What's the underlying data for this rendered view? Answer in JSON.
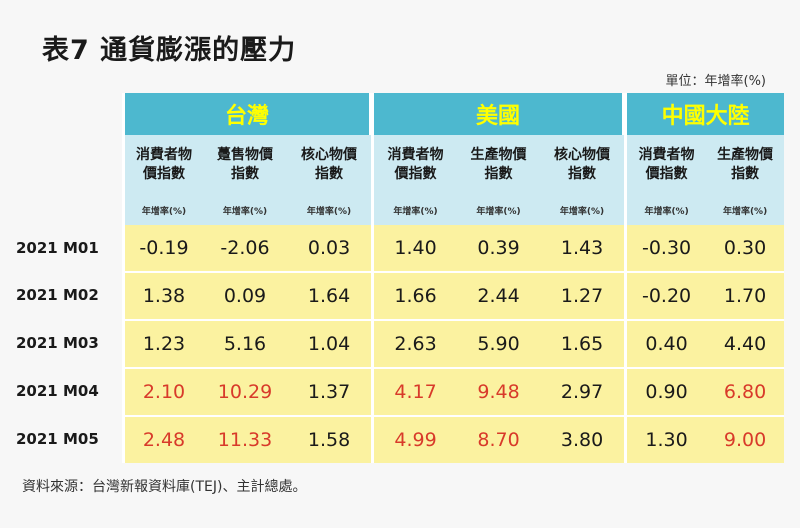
{
  "title": "表7  通貨膨漲的壓力",
  "unit_note": "單位：年增率(%)",
  "source": "資料來源：台灣新報資料庫(TEJ)、主計總處。",
  "groups": [
    {
      "name": "台灣",
      "columns": [
        {
          "label_line1": "消費者物",
          "label_line2": "價指數",
          "unit": "年增率(%)"
        },
        {
          "label_line1": "躉售物價",
          "label_line2": "指數",
          "unit": "年增率(%)"
        },
        {
          "label_line1": "核心物價",
          "label_line2": "指數",
          "unit": "年增率(%)"
        }
      ]
    },
    {
      "name": "美國",
      "columns": [
        {
          "label_line1": "消費者物",
          "label_line2": "價指數",
          "unit": "年增率(%)"
        },
        {
          "label_line1": "生產物價",
          "label_line2": "指數",
          "unit": "年增率(%)"
        },
        {
          "label_line1": "核心物價",
          "label_line2": "指數",
          "unit": "年增率(%)"
        }
      ]
    },
    {
      "name": "中國大陸",
      "columns": [
        {
          "label_line1": "消費者物",
          "label_line2": "價指數",
          "unit": "年增率(%)"
        },
        {
          "label_line1": "生產物價",
          "label_line2": "指數",
          "unit": "年增率(%)"
        }
      ]
    }
  ],
  "rows": [
    {
      "label": "2021 M01",
      "values": [
        "-0.19",
        "-2.06",
        "0.03",
        "1.40",
        "0.39",
        "1.43",
        "-0.30",
        "0.30"
      ],
      "red": [
        false,
        false,
        false,
        false,
        false,
        false,
        false,
        false
      ]
    },
    {
      "label": "2021 M02",
      "values": [
        "1.38",
        "0.09",
        "1.64",
        "1.66",
        "2.44",
        "1.27",
        "-0.20",
        "1.70"
      ],
      "red": [
        false,
        false,
        false,
        false,
        false,
        false,
        false,
        false
      ]
    },
    {
      "label": "2021 M03",
      "values": [
        "1.23",
        "5.16",
        "1.04",
        "2.63",
        "5.90",
        "1.65",
        "0.40",
        "4.40"
      ],
      "red": [
        false,
        false,
        false,
        false,
        false,
        false,
        false,
        false
      ]
    },
    {
      "label": "2021 M04",
      "values": [
        "2.10",
        "10.29",
        "1.37",
        "4.17",
        "9.48",
        "2.97",
        "0.90",
        "6.80"
      ],
      "red": [
        true,
        true,
        false,
        true,
        true,
        false,
        false,
        true
      ]
    },
    {
      "label": "2021 M05",
      "values": [
        "2.48",
        "11.33",
        "1.58",
        "4.99",
        "8.70",
        "3.80",
        "1.30",
        "9.00"
      ],
      "red": [
        true,
        true,
        false,
        true,
        true,
        false,
        false,
        true
      ]
    }
  ],
  "colors": {
    "header_bg": "#4db8cf",
    "header_text": "#ffff00",
    "subheader_bg": "#cdeaf2",
    "cell_bg": "#fbf2a0",
    "highlight_text": "#d83a2a"
  }
}
